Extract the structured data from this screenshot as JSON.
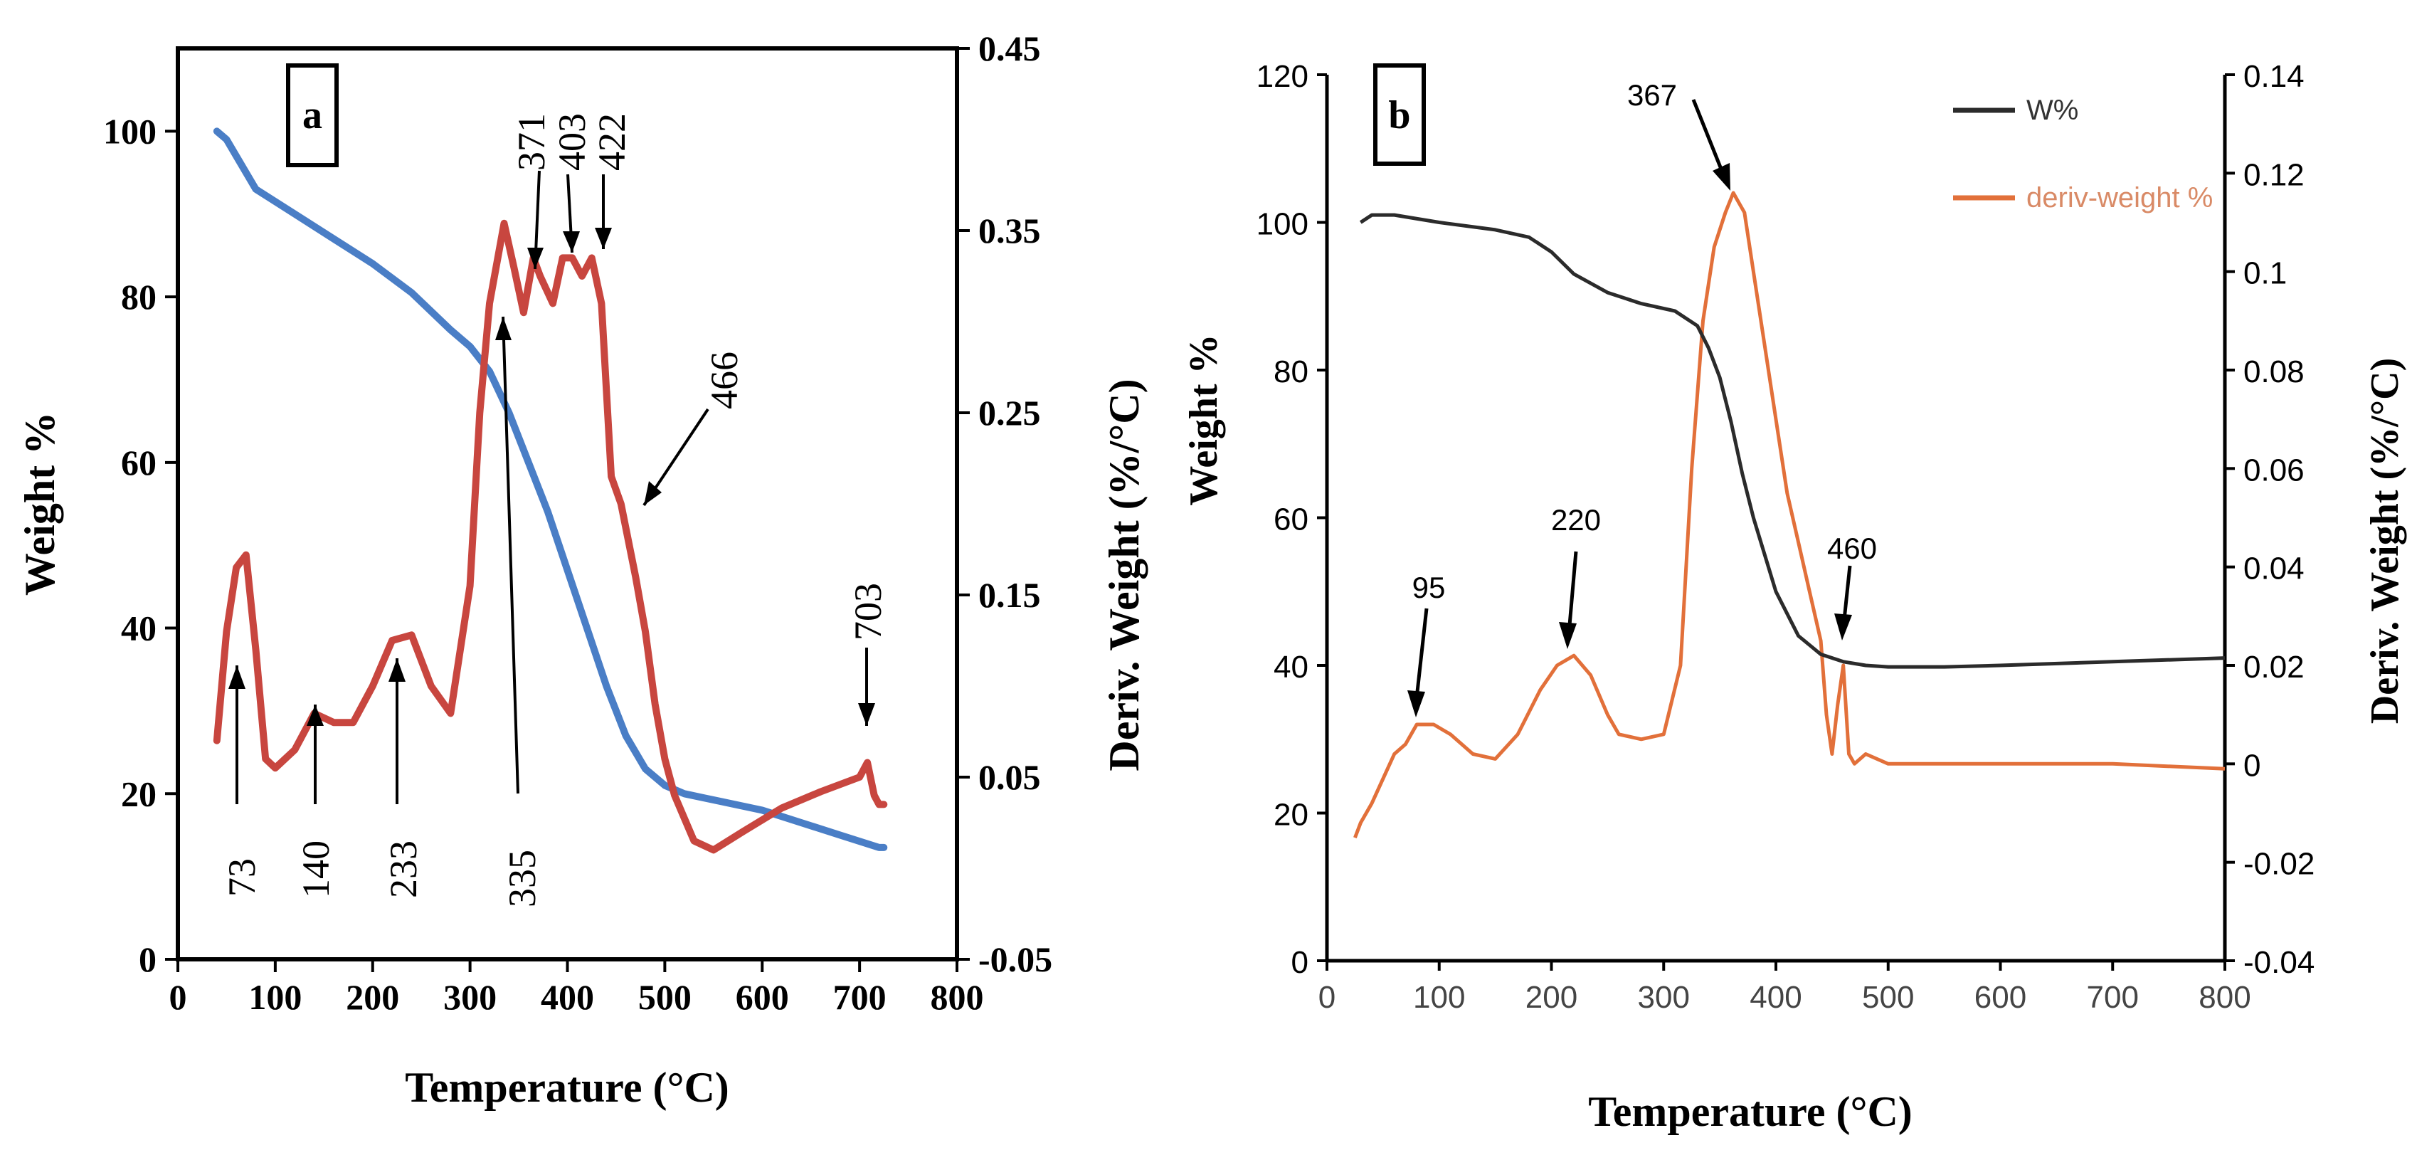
{
  "chart_data": [
    {
      "type": "line",
      "panel_label": "a",
      "xlabel": "Temperature (°C)",
      "ylabel": "Weight %",
      "y2label": "Deriv. Weight (%/°C)",
      "xlim": [
        0,
        800
      ],
      "ylim": [
        0,
        110
      ],
      "y2lim": [
        -0.05,
        0.45
      ],
      "x_ticks": [
        "0",
        "100",
        "200",
        "300",
        "400",
        "500",
        "600",
        "700",
        "800"
      ],
      "y_ticks": [
        "0",
        "20",
        "40",
        "60",
        "80",
        "100"
      ],
      "y2_ticks": [
        "-0.05",
        "0.05",
        "0.15",
        "0.25",
        "0.35",
        "0.45"
      ],
      "grid": false,
      "series": [
        {
          "name": "Weight %",
          "axis": "left",
          "color": "#4a7ec6",
          "x": [
            40,
            50,
            60,
            80,
            120,
            160,
            200,
            240,
            280,
            300,
            320,
            340,
            360,
            380,
            400,
            420,
            440,
            460,
            480,
            500,
            520,
            540,
            560,
            600,
            640,
            680,
            720,
            725
          ],
          "y": [
            100,
            99,
            97,
            93,
            90,
            87,
            84,
            80.5,
            76,
            74,
            71,
            66,
            60,
            54,
            47,
            40,
            33,
            27,
            23,
            21,
            20,
            19.5,
            19,
            18,
            16.5,
            15,
            13.5,
            13.5
          ]
        },
        {
          "name": "Deriv. Weight",
          "axis": "right",
          "color": "#c8463f",
          "x": [
            40,
            50,
            60,
            70,
            80,
            90,
            100,
            120,
            140,
            160,
            180,
            200,
            220,
            240,
            260,
            280,
            300,
            310,
            320,
            335,
            345,
            355,
            365,
            372,
            385,
            395,
            405,
            415,
            425,
            435,
            445,
            455,
            470,
            480,
            490,
            500,
            510,
            530,
            550,
            580,
            620,
            660,
            700,
            708,
            715,
            720,
            725
          ],
          "y": [
            0.07,
            0.13,
            0.165,
            0.172,
            0.12,
            0.06,
            0.055,
            0.065,
            0.085,
            0.08,
            0.08,
            0.1,
            0.125,
            0.128,
            0.1,
            0.085,
            0.155,
            0.25,
            0.31,
            0.354,
            0.33,
            0.305,
            0.335,
            0.325,
            0.31,
            0.335,
            0.335,
            0.325,
            0.335,
            0.31,
            0.215,
            0.2,
            0.16,
            0.13,
            0.09,
            0.06,
            0.04,
            0.015,
            0.01,
            0.02,
            0.033,
            0.042,
            0.05,
            0.058,
            0.04,
            0.035,
            0.035
          ]
        }
      ],
      "annotations": [
        {
          "text": "73",
          "x": 73,
          "y": 0.13,
          "axis": "right"
        },
        {
          "text": "140",
          "x": 140,
          "y": 0.085,
          "axis": "right"
        },
        {
          "text": "233",
          "x": 233,
          "y": 0.125,
          "axis": "right"
        },
        {
          "text": "335",
          "x": 335,
          "y": 0.315,
          "axis": "right"
        },
        {
          "text": "371",
          "x": 371,
          "y": 0.32,
          "axis": "right"
        },
        {
          "text": "403",
          "x": 403,
          "y": 0.325,
          "axis": "right"
        },
        {
          "text": "422",
          "x": 422,
          "y": 0.325,
          "axis": "right"
        },
        {
          "text": "466",
          "x": 466,
          "y": 0.2,
          "axis": "right"
        },
        {
          "text": "703",
          "x": 703,
          "y": 0.058,
          "axis": "right"
        }
      ]
    },
    {
      "type": "line",
      "panel_label": "b",
      "xlabel": "Temperature (°C)",
      "ylabel": "Weight %",
      "y2label": "Deriv. Weight (%/°C)",
      "xlim": [
        0,
        800
      ],
      "ylim": [
        0,
        120
      ],
      "y2lim": [
        -0.04,
        0.14
      ],
      "x_ticks": [
        "0",
        "100",
        "200",
        "300",
        "400",
        "500",
        "600",
        "700",
        "800"
      ],
      "y_ticks": [
        "0",
        "20",
        "40",
        "60",
        "80",
        "100",
        "120"
      ],
      "y2_ticks": [
        "-0.04",
        "-0.02",
        "0",
        "0.02",
        "0.04",
        "0.06",
        "0.08",
        "0.1",
        "0.12",
        "0.14"
      ],
      "grid": false,
      "legend": {
        "position": "top-right",
        "entries": [
          "W%",
          "deriv-weight %"
        ]
      },
      "series": [
        {
          "name": "W%",
          "axis": "left",
          "color": "#2b2b2b",
          "x": [
            30,
            40,
            60,
            100,
            150,
            180,
            200,
            220,
            250,
            280,
            310,
            330,
            340,
            350,
            360,
            370,
            380,
            390,
            400,
            410,
            420,
            440,
            460,
            480,
            500,
            550,
            600,
            700,
            800
          ],
          "y": [
            100,
            101,
            101,
            100,
            99,
            98,
            96,
            93,
            90.5,
            89,
            88,
            86,
            83,
            79,
            73,
            66,
            60,
            55,
            50,
            47,
            44,
            41.5,
            40.5,
            40,
            39.8,
            39.8,
            40,
            40.5,
            41
          ]
        },
        {
          "name": "deriv-weight %",
          "axis": "right",
          "color": "#e2703a",
          "x": [
            25,
            30,
            40,
            50,
            60,
            70,
            80,
            95,
            110,
            130,
            150,
            170,
            190,
            205,
            220,
            235,
            250,
            260,
            280,
            300,
            315,
            325,
            335,
            345,
            355,
            362,
            367,
            372,
            380,
            390,
            400,
            410,
            420,
            430,
            440,
            445,
            450,
            455,
            460,
            465,
            470,
            480,
            500,
            520,
            550,
            600,
            700,
            800
          ],
          "y": [
            -0.015,
            -0.012,
            -0.008,
            -0.003,
            0.002,
            0.004,
            0.008,
            0.008,
            0.006,
            0.002,
            0.001,
            0.006,
            0.015,
            0.02,
            0.022,
            0.018,
            0.01,
            0.006,
            0.005,
            0.006,
            0.02,
            0.06,
            0.09,
            0.105,
            0.112,
            0.116,
            0.114,
            0.112,
            0.1,
            0.085,
            0.07,
            0.055,
            0.045,
            0.035,
            0.025,
            0.01,
            0.002,
            0.012,
            0.02,
            0.002,
            0.0,
            0.002,
            0.0,
            0.0,
            0.0,
            0.0,
            0.0,
            -0.001
          ]
        }
      ],
      "annotations": [
        {
          "text": "95",
          "x": 80,
          "y": 0.008,
          "axis": "right"
        },
        {
          "text": "220",
          "x": 218,
          "y": 0.022,
          "axis": "right"
        },
        {
          "text": "367",
          "x": 367,
          "y": 0.116,
          "axis": "right"
        },
        {
          "text": "460",
          "x": 460,
          "y": 0.022,
          "axis": "right"
        }
      ]
    }
  ]
}
